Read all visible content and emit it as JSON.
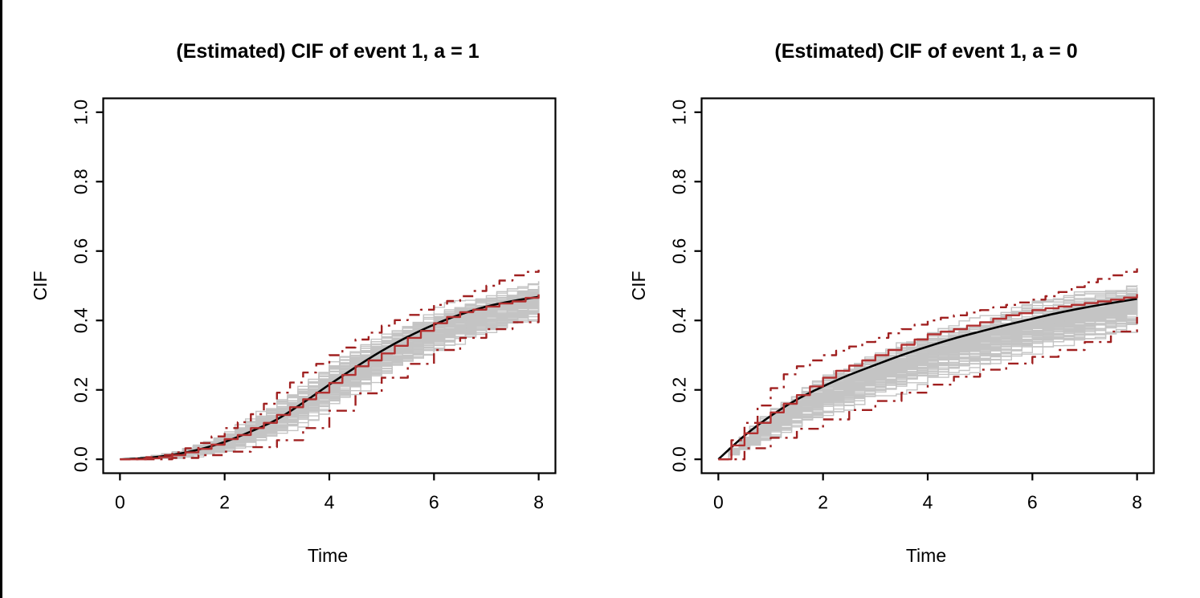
{
  "figure": {
    "background": "#ffffff",
    "left_edge_bar_color": "#000000"
  },
  "colors": {
    "true_cif": "#000000",
    "estimated_cif": "#b23030",
    "confidence_band": "#a02020",
    "replicates": "#c4c4c4",
    "axis": "#000000"
  },
  "chart_data": [
    {
      "type": "line",
      "panel": "a = 1",
      "title": "(Estimated) CIF of event 1, a = 1",
      "xlabel": "Time",
      "ylabel": "CIF",
      "xlim": [
        0,
        8
      ],
      "ylim": [
        0,
        1
      ],
      "xticks": [
        "0",
        "2",
        "4",
        "6",
        "8"
      ],
      "yticks": [
        "0.0",
        "0.2",
        "0.4",
        "0.6",
        "0.8",
        "1.0"
      ],
      "xtick_values": [
        0,
        2,
        4,
        6,
        8
      ],
      "ytick_values": [
        0,
        0.2,
        0.4,
        0.6,
        0.8,
        1.0
      ],
      "grid": false,
      "legend": null,
      "series": [
        {
          "name": "true-cif",
          "kind": "smooth",
          "style": "solid",
          "color": "#000000",
          "width": 2.6,
          "x": [
            0,
            0.5,
            1,
            1.5,
            2,
            2.5,
            3,
            3.5,
            4,
            4.5,
            5,
            5.5,
            6,
            6.5,
            7,
            7.5,
            8
          ],
          "y": [
            0,
            0.004,
            0.013,
            0.028,
            0.05,
            0.08,
            0.115,
            0.163,
            0.215,
            0.265,
            0.312,
            0.353,
            0.388,
            0.417,
            0.44,
            0.456,
            0.468
          ]
        },
        {
          "name": "estimated-cif",
          "kind": "step",
          "style": "solid",
          "color": "#b23030",
          "width": 2.4,
          "x": [
            0,
            0.25,
            0.5,
            0.75,
            1,
            1.25,
            1.5,
            1.75,
            2,
            2.25,
            2.5,
            2.75,
            3,
            3.25,
            3.5,
            3.75,
            4,
            4.25,
            4.5,
            4.75,
            5,
            5.25,
            5.5,
            5.75,
            6,
            6.25,
            6.5,
            6.75,
            7,
            7.25,
            7.5,
            7.75,
            8
          ],
          "y": [
            0,
            0,
            0.003,
            0.006,
            0.012,
            0.02,
            0.03,
            0.042,
            0.058,
            0.07,
            0.09,
            0.105,
            0.128,
            0.15,
            0.173,
            0.192,
            0.22,
            0.243,
            0.268,
            0.285,
            0.305,
            0.327,
            0.35,
            0.37,
            0.392,
            0.41,
            0.424,
            0.431,
            0.44,
            0.449,
            0.455,
            0.465,
            0.475
          ]
        },
        {
          "name": "ci-upper",
          "kind": "step",
          "style": "dashdot",
          "color": "#a02020",
          "width": 2.4,
          "x": [
            0,
            0.25,
            0.5,
            0.75,
            1,
            1.25,
            1.5,
            1.75,
            2,
            2.25,
            2.5,
            2.75,
            3,
            3.25,
            3.5,
            3.75,
            4,
            4.25,
            4.5,
            4.75,
            5,
            5.25,
            5.5,
            5.75,
            6,
            6.25,
            6.5,
            6.75,
            7,
            7.25,
            7.5,
            7.75,
            8
          ],
          "y": [
            0,
            0.002,
            0.006,
            0.012,
            0.02,
            0.032,
            0.047,
            0.066,
            0.09,
            0.107,
            0.13,
            0.16,
            0.192,
            0.221,
            0.25,
            0.275,
            0.3,
            0.322,
            0.345,
            0.365,
            0.385,
            0.401,
            0.416,
            0.431,
            0.445,
            0.456,
            0.47,
            0.485,
            0.5,
            0.515,
            0.53,
            0.54,
            0.546
          ]
        },
        {
          "name": "ci-lower",
          "kind": "step",
          "style": "dashdot",
          "color": "#a02020",
          "width": 2.4,
          "x": [
            0,
            0.5,
            1,
            1.5,
            2,
            2.5,
            3,
            3.5,
            4,
            4.5,
            5,
            5.5,
            6,
            6.5,
            7,
            7.5,
            8
          ],
          "y": [
            0,
            0.0,
            0.004,
            0.012,
            0.022,
            0.035,
            0.055,
            0.09,
            0.14,
            0.19,
            0.235,
            0.275,
            0.315,
            0.35,
            0.375,
            0.395,
            0.425
          ]
        }
      ],
      "replicates": {
        "count": 100,
        "color": "#c4c4c4",
        "width": 1.4,
        "seed": 101,
        "t": [
          0,
          0.5,
          1,
          1.5,
          2,
          2.5,
          3,
          3.5,
          4,
          4.5,
          5,
          5.5,
          6,
          6.5,
          7,
          7.5,
          8
        ],
        "band_lower": [
          0,
          0,
          0.002,
          0.008,
          0.02,
          0.04,
          0.065,
          0.1,
          0.145,
          0.19,
          0.235,
          0.27,
          0.308,
          0.338,
          0.362,
          0.383,
          0.4
        ],
        "band_upper": [
          0,
          0.01,
          0.025,
          0.05,
          0.085,
          0.125,
          0.175,
          0.23,
          0.285,
          0.33,
          0.375,
          0.408,
          0.438,
          0.46,
          0.48,
          0.5,
          0.52
        ]
      }
    },
    {
      "type": "line",
      "panel": "a = 0",
      "title": "(Estimated) CIF of event 1, a = 0",
      "xlabel": "Time",
      "ylabel": "CIF",
      "xlim": [
        0,
        8
      ],
      "ylim": [
        0,
        1
      ],
      "xticks": [
        "0",
        "2",
        "4",
        "6",
        "8"
      ],
      "yticks": [
        "0.0",
        "0.2",
        "0.4",
        "0.6",
        "0.8",
        "1.0"
      ],
      "xtick_values": [
        0,
        2,
        4,
        6,
        8
      ],
      "ytick_values": [
        0,
        0.2,
        0.4,
        0.6,
        0.8,
        1.0
      ],
      "grid": false,
      "legend": null,
      "series": [
        {
          "name": "true-cif",
          "kind": "smooth",
          "style": "solid",
          "color": "#000000",
          "width": 2.6,
          "x": [
            0,
            0.5,
            1,
            1.5,
            2,
            2.5,
            3,
            3.5,
            4,
            4.5,
            5,
            5.5,
            6,
            6.5,
            7,
            7.5,
            8
          ],
          "y": [
            0,
            0.068,
            0.125,
            0.172,
            0.21,
            0.243,
            0.272,
            0.3,
            0.325,
            0.348,
            0.368,
            0.387,
            0.405,
            0.422,
            0.437,
            0.45,
            0.462
          ]
        },
        {
          "name": "estimated-cif",
          "kind": "step",
          "style": "solid",
          "color": "#b23030",
          "width": 2.4,
          "x": [
            0,
            0.25,
            0.5,
            0.75,
            1,
            1.25,
            1.5,
            1.75,
            2,
            2.25,
            2.5,
            2.75,
            3,
            3.25,
            3.5,
            3.75,
            4,
            4.25,
            4.5,
            4.75,
            5,
            5.25,
            5.5,
            5.75,
            6,
            6.25,
            6.5,
            6.75,
            7,
            7.25,
            7.5,
            7.75,
            8
          ],
          "y": [
            0,
            0.04,
            0.075,
            0.105,
            0.135,
            0.16,
            0.185,
            0.21,
            0.235,
            0.255,
            0.27,
            0.285,
            0.3,
            0.315,
            0.33,
            0.345,
            0.36,
            0.368,
            0.375,
            0.385,
            0.395,
            0.405,
            0.415,
            0.421,
            0.43,
            0.435,
            0.44,
            0.445,
            0.45,
            0.455,
            0.46,
            0.466,
            0.476
          ]
        },
        {
          "name": "ci-upper",
          "kind": "step",
          "style": "dashdot",
          "color": "#a02020",
          "width": 2.4,
          "x": [
            0,
            0.25,
            0.5,
            0.75,
            1,
            1.25,
            1.5,
            1.75,
            2,
            2.25,
            2.5,
            2.75,
            3,
            3.25,
            3.5,
            3.75,
            4,
            4.25,
            4.5,
            4.75,
            5,
            5.25,
            5.5,
            5.75,
            6,
            6.25,
            6.5,
            6.75,
            7,
            7.25,
            7.5,
            7.75,
            8
          ],
          "y": [
            0,
            0.055,
            0.105,
            0.155,
            0.205,
            0.245,
            0.268,
            0.285,
            0.3,
            0.313,
            0.325,
            0.338,
            0.35,
            0.363,
            0.375,
            0.388,
            0.4,
            0.408,
            0.415,
            0.423,
            0.43,
            0.438,
            0.445,
            0.452,
            0.46,
            0.47,
            0.482,
            0.496,
            0.51,
            0.52,
            0.53,
            0.54,
            0.55
          ]
        },
        {
          "name": "ci-lower",
          "kind": "step",
          "style": "dashdot",
          "color": "#a02020",
          "width": 2.4,
          "x": [
            0,
            0.5,
            1,
            1.5,
            2,
            2.5,
            3,
            3.5,
            4,
            4.5,
            5,
            5.5,
            6,
            6.5,
            7,
            7.5,
            8
          ],
          "y": [
            0,
            0.032,
            0.062,
            0.088,
            0.115,
            0.142,
            0.168,
            0.192,
            0.215,
            0.238,
            0.258,
            0.276,
            0.295,
            0.315,
            0.338,
            0.368,
            0.41
          ]
        }
      ],
      "replicates": {
        "count": 100,
        "color": "#c4c4c4",
        "width": 1.4,
        "seed": 202,
        "t": [
          0,
          0.5,
          1,
          1.5,
          2,
          2.5,
          3,
          3.5,
          4,
          4.5,
          5,
          5.5,
          6,
          6.5,
          7,
          7.5,
          8
        ],
        "band_lower": [
          0,
          0.03,
          0.062,
          0.092,
          0.122,
          0.15,
          0.178,
          0.203,
          0.228,
          0.249,
          0.268,
          0.287,
          0.305,
          0.32,
          0.336,
          0.352,
          0.368
        ],
        "band_upper": [
          0,
          0.09,
          0.155,
          0.21,
          0.258,
          0.295,
          0.325,
          0.355,
          0.382,
          0.405,
          0.425,
          0.445,
          0.462,
          0.478,
          0.496,
          0.513,
          0.53
        ]
      }
    }
  ]
}
